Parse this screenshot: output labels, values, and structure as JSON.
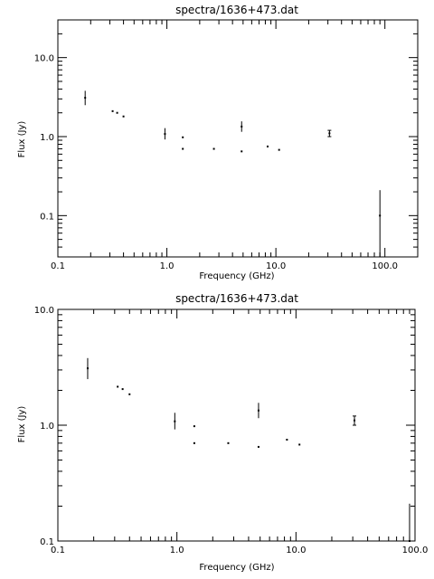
{
  "chart_data": [
    {
      "type": "scatter",
      "title": "spectra/1636+473.dat",
      "xlabel": "Frequency (GHz)",
      "ylabel": "Flux (Jy)",
      "xscale": "log",
      "yscale": "log",
      "xlim": [
        0.1,
        200
      ],
      "ylim": [
        0.03,
        30
      ],
      "xticks": [
        0.1,
        1.0,
        10.0,
        100.0
      ],
      "xtick_labels": [
        "0.1",
        "1.0",
        "10.0",
        "100.0"
      ],
      "yticks": [
        0.1,
        1.0,
        10.0
      ],
      "ytick_labels": [
        "0.1",
        "1.0",
        "10.0"
      ],
      "grid": false,
      "points": [
        {
          "x": 0.178,
          "y": 3.1,
          "ylo": 2.5,
          "yhi": 3.8
        },
        {
          "x": 0.318,
          "y": 2.1
        },
        {
          "x": 0.35,
          "y": 2.0
        },
        {
          "x": 0.4,
          "y": 1.8
        },
        {
          "x": 0.96,
          "y": 1.08,
          "ylo": 0.92,
          "yhi": 1.28
        },
        {
          "x": 1.4,
          "y": 0.98
        },
        {
          "x": 1.4,
          "y": 0.7
        },
        {
          "x": 2.7,
          "y": 0.7
        },
        {
          "x": 4.85,
          "y": 1.34,
          "ylo": 1.15,
          "yhi": 1.56
        },
        {
          "x": 4.85,
          "y": 0.65
        },
        {
          "x": 8.4,
          "y": 0.75
        },
        {
          "x": 10.7,
          "y": 0.68
        },
        {
          "x": 31.0,
          "y": 1.1,
          "ylo": 1.0,
          "yhi": 1.2
        },
        {
          "x": 90.0,
          "y": 0.1,
          "ylo": 0.03,
          "yhi": 0.21
        }
      ]
    },
    {
      "type": "scatter",
      "title": "spectra/1636+473.dat",
      "xlabel": "Frequency (GHz)",
      "ylabel": "Flux (Jy)",
      "xscale": "log",
      "yscale": "log",
      "xlim": [
        0.1,
        100
      ],
      "ylim": [
        0.1,
        10
      ],
      "xticks": [
        0.1,
        1.0,
        10.0,
        100.0
      ],
      "xtick_labels": [
        "0.1",
        "1.0",
        "10.0",
        "100.0"
      ],
      "yticks": [
        0.1,
        1.0,
        10.0
      ],
      "ytick_labels": [
        "0.1",
        "1.0",
        "10.0"
      ],
      "grid": false,
      "points": [
        {
          "x": 0.178,
          "y": 3.1,
          "ylo": 2.5,
          "yhi": 3.8
        },
        {
          "x": 0.318,
          "y": 2.15
        },
        {
          "x": 0.35,
          "y": 2.05
        },
        {
          "x": 0.4,
          "y": 1.85
        },
        {
          "x": 0.96,
          "y": 1.08,
          "ylo": 0.92,
          "yhi": 1.28
        },
        {
          "x": 1.4,
          "y": 0.98
        },
        {
          "x": 1.4,
          "y": 0.7
        },
        {
          "x": 2.7,
          "y": 0.7
        },
        {
          "x": 4.85,
          "y": 1.34,
          "ylo": 1.15,
          "yhi": 1.56
        },
        {
          "x": 4.85,
          "y": 0.65
        },
        {
          "x": 8.4,
          "y": 0.75
        },
        {
          "x": 10.7,
          "y": 0.68
        },
        {
          "x": 31.0,
          "y": 1.1,
          "ylo": 1.0,
          "yhi": 1.2
        },
        {
          "x": 90.0,
          "y": 0.1,
          "ylo": 0.03,
          "yhi": 0.21
        }
      ]
    }
  ]
}
